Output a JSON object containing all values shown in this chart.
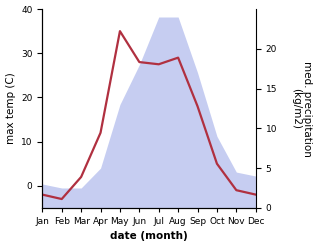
{
  "months": [
    "Jan",
    "Feb",
    "Mar",
    "Apr",
    "May",
    "Jun",
    "Jul",
    "Aug",
    "Sep",
    "Oct",
    "Nov",
    "Dec"
  ],
  "temperature": [
    -2,
    -3,
    2,
    12,
    35,
    28,
    27.5,
    29,
    18,
    5,
    -1,
    -2
  ],
  "precipitation": [
    3,
    2.5,
    2.5,
    5,
    13,
    18,
    24,
    24,
    17,
    9,
    4.5,
    4
  ],
  "temp_color": "#b03040",
  "precip_color_fill": "#c0c8f0",
  "ylabel_left": "max temp (C)",
  "ylabel_right": "med. precipitation\n(kg/m2)",
  "xlabel": "date (month)",
  "ylim_left": [
    -5,
    40
  ],
  "ylim_right": [
    0,
    25
  ],
  "yticks_left": [
    0,
    10,
    20,
    30,
    40
  ],
  "yticks_right": [
    0,
    5,
    10,
    15,
    20
  ],
  "precip_scale_factor": 1.25,
  "background_color": "#ffffff",
  "temp_linewidth": 1.6,
  "label_fontsize": 7.5,
  "tick_fontsize": 6.5
}
